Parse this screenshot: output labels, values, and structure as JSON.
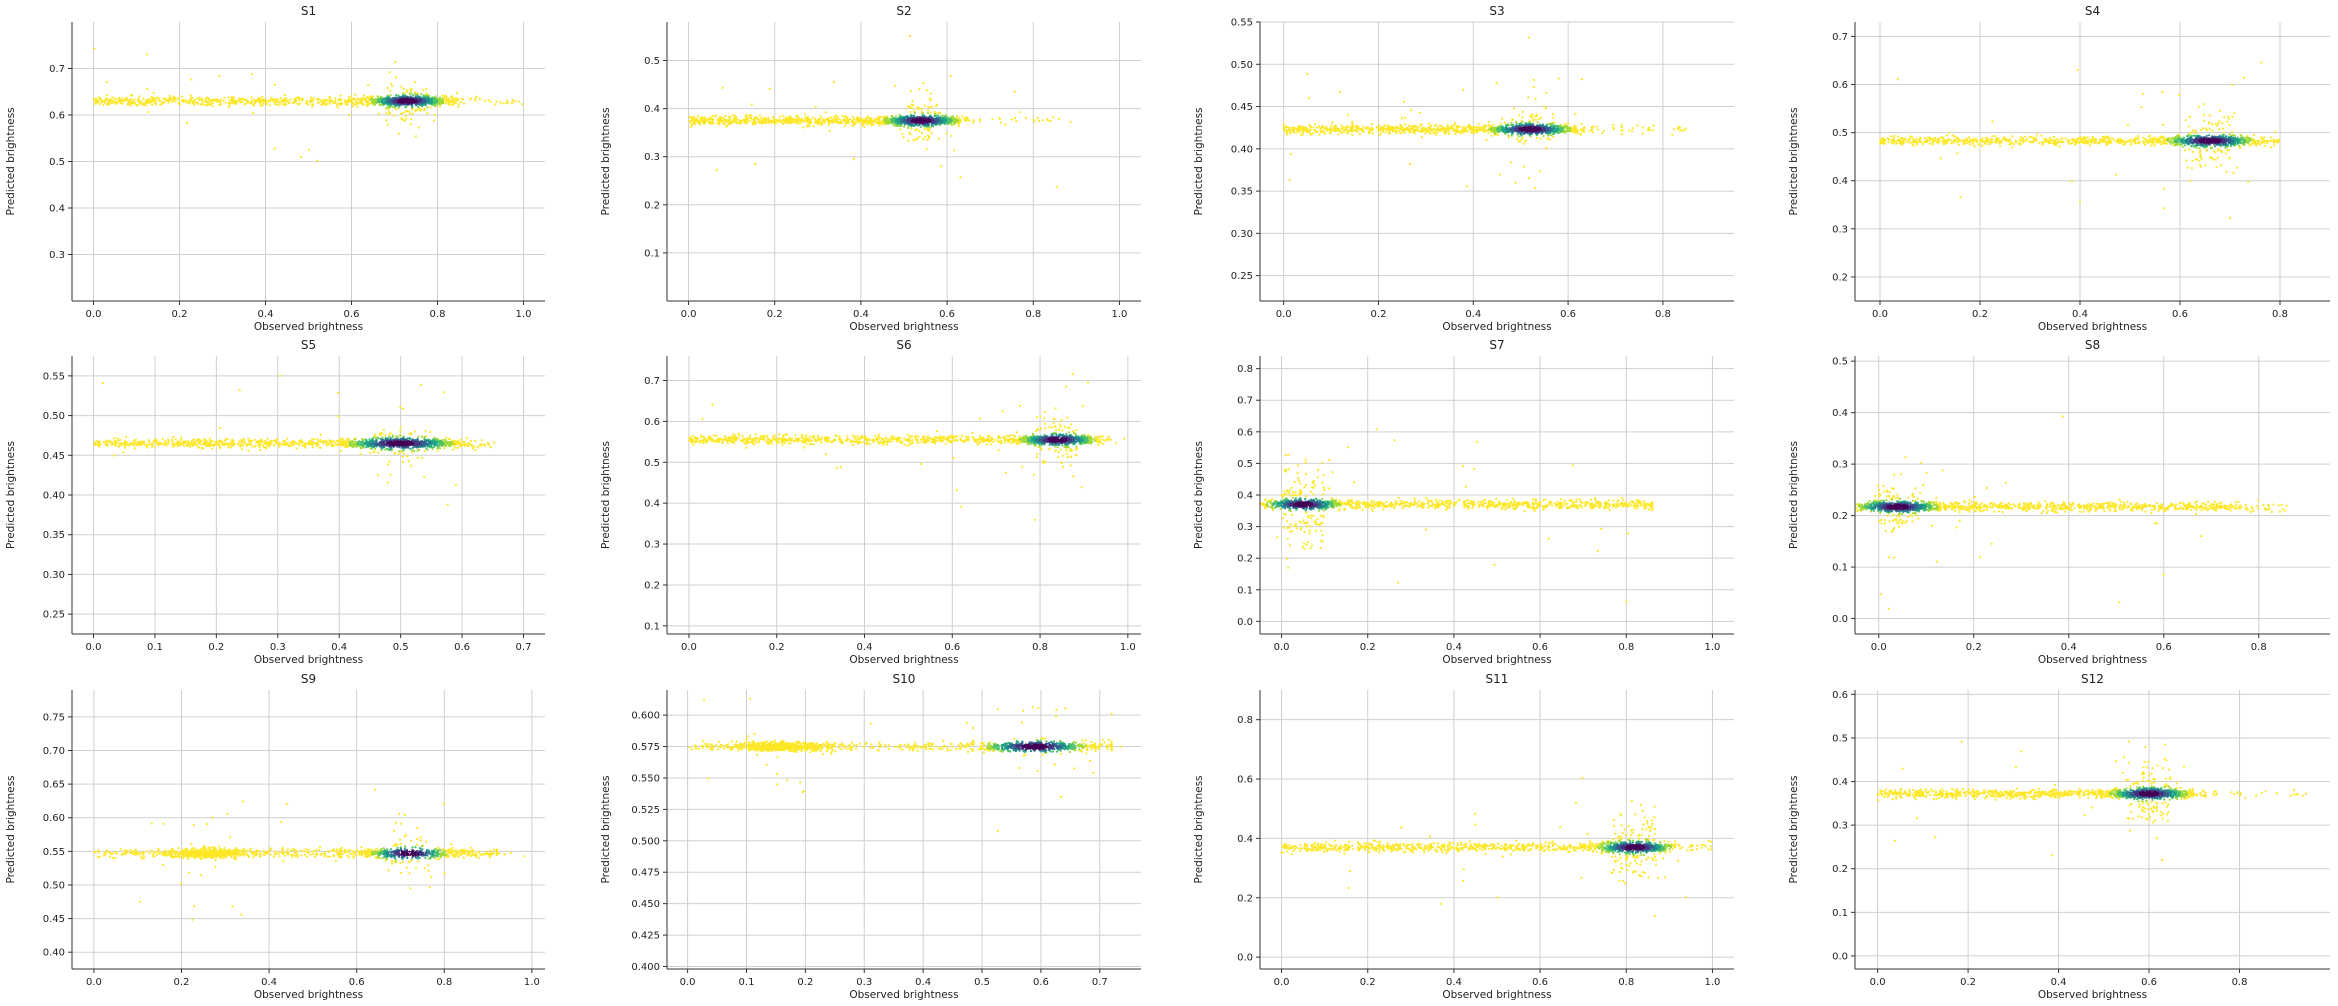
{
  "figure": {
    "colormap": [
      "#fde725",
      "#a0da39",
      "#4ac16d",
      "#1fa187",
      "#277f8e",
      "#365c8d",
      "#46327e",
      "#440154"
    ]
  },
  "chart_data": [
    {
      "type": "scatter",
      "title": "S1",
      "xlabel": "Observed brightness",
      "ylabel": "Predicted brightness",
      "xlim": [
        -0.05,
        1.05
      ],
      "ylim": [
        0.2,
        0.8
      ],
      "xticks": [
        0.0,
        0.2,
        0.4,
        0.6,
        0.8,
        1.0
      ],
      "yticks": [
        0.3,
        0.4,
        0.5,
        0.6,
        0.7
      ],
      "xtick_labels": [
        "0.0",
        "0.2",
        "0.4",
        "0.6",
        "0.8",
        "1.0"
      ],
      "ytick_labels": [
        "0.3",
        "0.4",
        "0.5",
        "0.6",
        "0.7"
      ],
      "grid": true,
      "series": [
        {
          "name": "points",
          "band_y": 0.63,
          "x_range": [
            0.0,
            0.85
          ],
          "dense_x": 0.73,
          "dense_y_spread": 0.1,
          "tail_x_max": 1.0
        }
      ]
    },
    {
      "type": "scatter",
      "title": "S2",
      "xlabel": "Observed brightness",
      "ylabel": "Predicted brightness",
      "xlim": [
        -0.05,
        1.05
      ],
      "ylim": [
        0.0,
        0.58
      ],
      "xticks": [
        0.0,
        0.2,
        0.4,
        0.6,
        0.8,
        1.0
      ],
      "yticks": [
        0.1,
        0.2,
        0.3,
        0.4,
        0.5
      ],
      "xtick_labels": [
        "0.0",
        "0.2",
        "0.4",
        "0.6",
        "0.8",
        "1.0"
      ],
      "ytick_labels": [
        "0.1",
        "0.2",
        "0.3",
        "0.4",
        "0.5"
      ],
      "grid": true,
      "series": [
        {
          "name": "points",
          "band_y": 0.375,
          "x_range": [
            0.0,
            0.63
          ],
          "dense_x": 0.54,
          "dense_y_spread": 0.12,
          "tail_x_max": 0.9
        }
      ]
    },
    {
      "type": "scatter",
      "title": "S3",
      "xlabel": "Observed brightness",
      "ylabel": "Predicted brightness",
      "xlim": [
        -0.05,
        0.95
      ],
      "ylim": [
        0.22,
        0.55
      ],
      "xticks": [
        0.0,
        0.2,
        0.4,
        0.6,
        0.8
      ],
      "yticks": [
        0.25,
        0.3,
        0.35,
        0.4,
        0.45,
        0.5,
        0.55
      ],
      "xtick_labels": [
        "0.0",
        "0.2",
        "0.4",
        "0.6",
        "0.8"
      ],
      "ytick_labels": [
        "0.25",
        "0.30",
        "0.35",
        "0.40",
        "0.45",
        "0.50",
        "0.55"
      ],
      "grid": true,
      "series": [
        {
          "name": "points",
          "band_y": 0.423,
          "x_range": [
            0.0,
            0.62
          ],
          "dense_x": 0.52,
          "dense_y_spread": 0.09,
          "tail_x_max": 0.85
        }
      ]
    },
    {
      "type": "scatter",
      "title": "S4",
      "xlabel": "Observed brightness",
      "ylabel": "Predicted brightness",
      "xlim": [
        -0.05,
        0.9
      ],
      "ylim": [
        0.15,
        0.73
      ],
      "xticks": [
        0.0,
        0.2,
        0.4,
        0.6,
        0.8
      ],
      "yticks": [
        0.2,
        0.3,
        0.4,
        0.5,
        0.6,
        0.7
      ],
      "xtick_labels": [
        "0.0",
        "0.2",
        "0.4",
        "0.6",
        "0.8"
      ],
      "ytick_labels": [
        "0.2",
        "0.3",
        "0.4",
        "0.5",
        "0.6",
        "0.7"
      ],
      "grid": true,
      "series": [
        {
          "name": "points",
          "band_y": 0.483,
          "x_range": [
            0.0,
            0.76
          ],
          "dense_x": 0.66,
          "dense_y_spread": 0.15,
          "tail_x_max": 0.8
        }
      ]
    },
    {
      "type": "scatter",
      "title": "S5",
      "xlabel": "Observed brightness",
      "ylabel": "Predicted brightness",
      "xlim": [
        -0.035,
        0.735
      ],
      "ylim": [
        0.225,
        0.575
      ],
      "xticks": [
        0.0,
        0.1,
        0.2,
        0.3,
        0.4,
        0.5,
        0.6,
        0.7
      ],
      "yticks": [
        0.25,
        0.3,
        0.35,
        0.4,
        0.45,
        0.5,
        0.55
      ],
      "xtick_labels": [
        "0.0",
        "0.1",
        "0.2",
        "0.3",
        "0.4",
        "0.5",
        "0.6",
        "0.7"
      ],
      "ytick_labels": [
        "0.25",
        "0.30",
        "0.35",
        "0.40",
        "0.45",
        "0.50",
        "0.55"
      ],
      "grid": true,
      "series": [
        {
          "name": "points",
          "band_y": 0.465,
          "x_range": [
            0.0,
            0.6
          ],
          "dense_x": 0.5,
          "dense_y_spread": 0.08,
          "tail_x_max": 0.65
        }
      ]
    },
    {
      "type": "scatter",
      "title": "S6",
      "xlabel": "Observed brightness",
      "ylabel": "Predicted brightness",
      "xlim": [
        -0.05,
        1.03
      ],
      "ylim": [
        0.08,
        0.76
      ],
      "xticks": [
        0.0,
        0.2,
        0.4,
        0.6,
        0.8,
        1.0
      ],
      "yticks": [
        0.1,
        0.2,
        0.3,
        0.4,
        0.5,
        0.6,
        0.7
      ],
      "xtick_labels": [
        "0.0",
        "0.2",
        "0.4",
        "0.6",
        "0.8",
        "1.0"
      ],
      "ytick_labels": [
        "0.1",
        "0.2",
        "0.3",
        "0.4",
        "0.5",
        "0.6",
        "0.7"
      ],
      "grid": true,
      "series": [
        {
          "name": "points",
          "band_y": 0.555,
          "x_range": [
            0.0,
            0.9
          ],
          "dense_x": 0.84,
          "dense_y_spread": 0.14,
          "tail_x_max": 0.95
        }
      ]
    },
    {
      "type": "scatter",
      "title": "S7",
      "xlabel": "Observed brightness",
      "ylabel": "Predicted brightness",
      "xlim": [
        -0.05,
        1.05
      ],
      "ylim": [
        -0.04,
        0.84
      ],
      "xticks": [
        0.0,
        0.2,
        0.4,
        0.6,
        0.8,
        1.0
      ],
      "yticks": [
        0.0,
        0.1,
        0.2,
        0.3,
        0.4,
        0.5,
        0.6,
        0.7,
        0.8
      ],
      "xtick_labels": [
        "0.0",
        "0.2",
        "0.4",
        "0.6",
        "0.8",
        "1.0"
      ],
      "ytick_labels": [
        "0.0",
        "0.1",
        "0.2",
        "0.3",
        "0.4",
        "0.5",
        "0.6",
        "0.7",
        "0.8"
      ],
      "grid": true,
      "series": [
        {
          "name": "points",
          "band_y": 0.37,
          "x_range": [
            0.0,
            0.86
          ],
          "dense_x": 0.05,
          "dense_y_spread": 0.25,
          "tail_x_max": 0.86
        }
      ]
    },
    {
      "type": "scatter",
      "title": "S8",
      "xlabel": "Observed brightness",
      "ylabel": "Predicted brightness",
      "xlim": [
        -0.05,
        0.95
      ],
      "ylim": [
        -0.03,
        0.51
      ],
      "xticks": [
        0.0,
        0.2,
        0.4,
        0.6,
        0.8
      ],
      "yticks": [
        0.0,
        0.1,
        0.2,
        0.3,
        0.4,
        0.5
      ],
      "xtick_labels": [
        "0.0",
        "0.2",
        "0.4",
        "0.6",
        "0.8"
      ],
      "ytick_labels": [
        "0.0",
        "0.1",
        "0.2",
        "0.3",
        "0.4",
        "0.5"
      ],
      "grid": true,
      "series": [
        {
          "name": "points",
          "band_y": 0.217,
          "x_range": [
            0.0,
            0.76
          ],
          "dense_x": 0.04,
          "dense_y_spread": 0.12,
          "tail_x_max": 0.86
        }
      ]
    },
    {
      "type": "scatter",
      "title": "S9",
      "xlabel": "Observed brightness",
      "ylabel": "Predicted brightness",
      "xlim": [
        -0.05,
        1.03
      ],
      "ylim": [
        0.375,
        0.79
      ],
      "xticks": [
        0.0,
        0.2,
        0.4,
        0.6,
        0.8,
        1.0
      ],
      "yticks": [
        0.4,
        0.45,
        0.5,
        0.55,
        0.6,
        0.65,
        0.7,
        0.75
      ],
      "xtick_labels": [
        "0.0",
        "0.2",
        "0.4",
        "0.6",
        "0.8",
        "1.0"
      ],
      "ytick_labels": [
        "0.40",
        "0.45",
        "0.50",
        "0.55",
        "0.60",
        "0.65",
        "0.70",
        "0.75"
      ],
      "grid": true,
      "series": [
        {
          "name": "points",
          "band_y": 0.547,
          "x_range": [
            0.0,
            0.92
          ],
          "dense_x": 0.72,
          "dense_y_spread": 0.15,
          "tail_x_max": 0.92,
          "clusters": [
            [
              0.27,
              0.08
            ],
            [
              0.72,
              0.14
            ]
          ]
        }
      ]
    },
    {
      "type": "scatter",
      "title": "S10",
      "xlabel": "Observed brightness",
      "ylabel": "Predicted brightness",
      "xlim": [
        -0.035,
        0.77
      ],
      "ylim": [
        0.398,
        0.62
      ],
      "xticks": [
        0.0,
        0.1,
        0.2,
        0.3,
        0.4,
        0.5,
        0.6,
        0.7
      ],
      "yticks": [
        0.4,
        0.425,
        0.45,
        0.475,
        0.5,
        0.525,
        0.55,
        0.575,
        0.6
      ],
      "xtick_labels": [
        "0.0",
        "0.1",
        "0.2",
        "0.3",
        "0.4",
        "0.5",
        "0.6",
        "0.7"
      ],
      "ytick_labels": [
        "0.400",
        "0.425",
        "0.450",
        "0.475",
        "0.500",
        "0.525",
        "0.550",
        "0.575",
        "0.600"
      ],
      "grid": true,
      "series": [
        {
          "name": "points",
          "band_y": 0.575,
          "x_range": [
            0.0,
            0.72
          ],
          "dense_x": 0.59,
          "dense_y_spread": 0.05,
          "tail_x_max": 0.72,
          "clusters": [
            [
              0.16,
              0.07
            ],
            [
              0.59,
              0.08
            ]
          ]
        }
      ]
    },
    {
      "type": "scatter",
      "title": "S11",
      "xlabel": "Observed brightness",
      "ylabel": "Predicted brightness",
      "xlim": [
        -0.05,
        1.05
      ],
      "ylim": [
        -0.04,
        0.9
      ],
      "xticks": [
        0.0,
        0.2,
        0.4,
        0.6,
        0.8,
        1.0
      ],
      "yticks": [
        0.0,
        0.2,
        0.4,
        0.6,
        0.8
      ],
      "xtick_labels": [
        "0.0",
        "0.2",
        "0.4",
        "0.6",
        "0.8",
        "1.0"
      ],
      "ytick_labels": [
        "0.0",
        "0.2",
        "0.4",
        "0.6",
        "0.8"
      ],
      "grid": true,
      "series": [
        {
          "name": "points",
          "band_y": 0.37,
          "x_range": [
            0.0,
            0.88
          ],
          "dense_x": 0.82,
          "dense_y_spread": 0.2,
          "tail_x_max": 1.0
        }
      ]
    },
    {
      "type": "scatter",
      "title": "S12",
      "xlabel": "Observed brightness",
      "ylabel": "Predicted brightness",
      "xlim": [
        -0.05,
        1.0
      ],
      "ylim": [
        -0.03,
        0.61
      ],
      "xticks": [
        0.0,
        0.2,
        0.4,
        0.6,
        0.8
      ],
      "yticks": [
        0.0,
        0.1,
        0.2,
        0.3,
        0.4,
        0.5,
        0.6
      ],
      "xtick_labels": [
        "0.0",
        "0.2",
        "0.4",
        "0.6",
        "0.8"
      ],
      "ytick_labels": [
        "0.0",
        "0.1",
        "0.2",
        "0.3",
        "0.4",
        "0.5",
        "0.6"
      ],
      "grid": true,
      "series": [
        {
          "name": "points",
          "band_y": 0.372,
          "x_range": [
            0.0,
            0.7
          ],
          "dense_x": 0.6,
          "dense_y_spread": 0.2,
          "tail_x_max": 0.95
        }
      ]
    }
  ]
}
